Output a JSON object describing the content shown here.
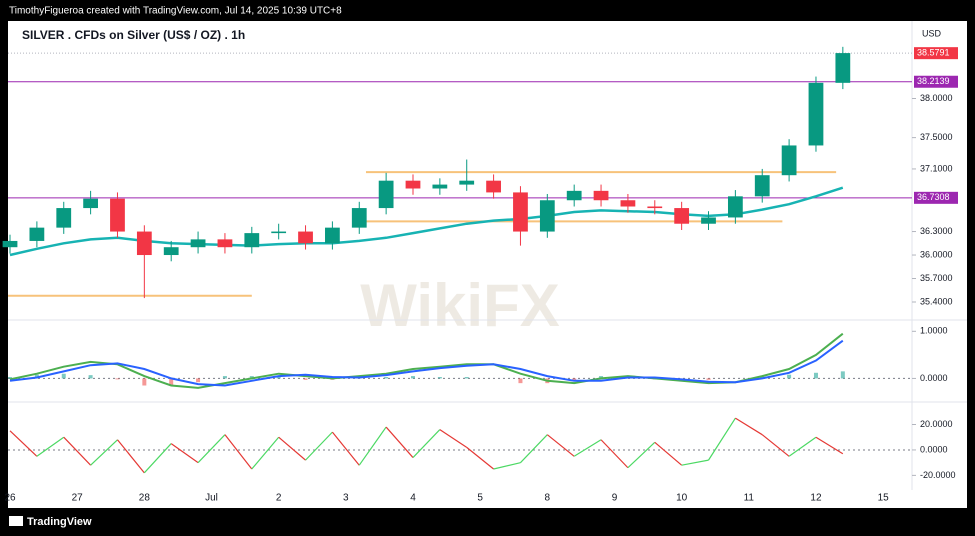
{
  "header": {
    "credit": "TimothyFigueroa created with TradingView.com, Jul 14, 2025 10:39 UTC+8"
  },
  "footer": {
    "brand": "TradingView"
  },
  "watermark": "WikiFX",
  "chart_data": {
    "type": "candlestick",
    "title": "SILVER . CFDs on Silver (US$ / OZ) . 1h",
    "currency": "USD",
    "up_color": "#089981",
    "down_color": "#f23645",
    "x": [
      0,
      0.4,
      0.8,
      1.2,
      1.6,
      2.0,
      2.4,
      2.8,
      3.2,
      3.6,
      4.0,
      4.4,
      4.8,
      5.2,
      5.6,
      6.0,
      6.4,
      6.8,
      7.2,
      7.6,
      8.0,
      8.4,
      8.8,
      9.2,
      9.6,
      10.0,
      10.4,
      10.8,
      11.2,
      11.6,
      12.0,
      12.4
    ],
    "open": [
      36.1,
      36.18,
      36.35,
      36.6,
      36.72,
      36.3,
      36.0,
      36.1,
      36.2,
      36.1,
      36.28,
      36.3,
      36.15,
      36.35,
      36.6,
      36.95,
      36.85,
      36.9,
      36.95,
      36.8,
      36.3,
      36.7,
      36.82,
      36.7,
      36.62,
      36.6,
      36.4,
      36.48,
      36.75,
      37.02,
      37.4,
      38.2
    ],
    "high": [
      36.26,
      36.43,
      36.68,
      36.82,
      36.8,
      36.38,
      36.18,
      36.3,
      36.28,
      36.36,
      36.4,
      36.38,
      36.43,
      36.68,
      37.05,
      37.03,
      36.98,
      37.22,
      37.03,
      36.88,
      36.78,
      36.9,
      36.9,
      36.78,
      36.7,
      36.68,
      36.56,
      36.83,
      37.1,
      37.48,
      38.28,
      38.66
    ],
    "low": [
      36.02,
      36.1,
      36.27,
      36.52,
      36.22,
      35.45,
      35.92,
      36.02,
      36.02,
      36.02,
      36.2,
      36.07,
      36.07,
      36.27,
      36.52,
      36.77,
      36.77,
      36.82,
      36.72,
      36.12,
      36.22,
      36.62,
      36.62,
      36.54,
      36.52,
      36.32,
      36.32,
      36.4,
      36.67,
      36.94,
      37.32,
      38.12
    ],
    "close": [
      36.18,
      36.35,
      36.6,
      36.72,
      36.3,
      36.0,
      36.1,
      36.2,
      36.1,
      36.28,
      36.3,
      36.15,
      36.35,
      36.6,
      36.95,
      36.85,
      36.9,
      36.95,
      36.8,
      36.3,
      36.7,
      36.82,
      36.7,
      36.62,
      36.6,
      36.4,
      36.48,
      36.75,
      37.02,
      37.4,
      38.2,
      38.58
    ],
    "moving_average": {
      "color": "#17b3b3",
      "values": [
        36.0,
        36.08,
        36.15,
        36.2,
        36.22,
        36.18,
        36.15,
        36.14,
        36.13,
        36.12,
        36.14,
        36.15,
        36.15,
        36.18,
        36.22,
        36.28,
        36.34,
        36.4,
        36.44,
        36.46,
        36.5,
        36.55,
        36.57,
        36.56,
        36.55,
        36.52,
        36.5,
        36.52,
        36.58,
        36.65,
        36.75,
        36.86
      ]
    },
    "xlim": [
      -0.03,
      13.4
    ],
    "xticks": [
      {
        "value": 0,
        "label": "26"
      },
      {
        "value": 1,
        "label": "27"
      },
      {
        "value": 2,
        "label": "28"
      },
      {
        "value": 3,
        "label": "Jul"
      },
      {
        "value": 4,
        "label": "2"
      },
      {
        "value": 5,
        "label": "3"
      },
      {
        "value": 6,
        "label": "4"
      },
      {
        "value": 7,
        "label": "5"
      },
      {
        "value": 8,
        "label": "8"
      },
      {
        "value": 9,
        "label": "9"
      },
      {
        "value": 10,
        "label": "10"
      },
      {
        "value": 11,
        "label": "11"
      },
      {
        "value": 12,
        "label": "12"
      },
      {
        "value": 13,
        "label": "15"
      }
    ],
    "ylim": [
      35.17,
      38.99
    ],
    "yticks": [
      {
        "value": 35.4,
        "label": "35.4000"
      },
      {
        "value": 35.7,
        "label": "35.7000"
      },
      {
        "value": 36.0,
        "label": "36.0000"
      },
      {
        "value": 36.3,
        "label": "36.3000"
      },
      {
        "value": 37.1,
        "label": "37.1000"
      },
      {
        "value": 37.5,
        "label": "37.5000"
      },
      {
        "value": 38.0,
        "label": "38.0000"
      }
    ],
    "last_price": {
      "value": 38.5791,
      "color": "#f23645"
    },
    "levels": [
      {
        "value": 38.2139,
        "color": "#9c27b0"
      },
      {
        "value": 36.7308,
        "color": "#9c27b0"
      }
    ],
    "zones": [
      {
        "value": 37.06,
        "x_start": 5.3,
        "x_end": 12.3,
        "color": "#f7c27a"
      },
      {
        "value": 36.43,
        "x_start": 5.3,
        "x_end": 11.5,
        "color": "#f7c27a"
      },
      {
        "value": 35.48,
        "x_start": -0.03,
        "x_end": 3.6,
        "color": "#f7c27a"
      }
    ],
    "macd": {
      "ylim": [
        -0.5,
        1.24
      ],
      "yticks": [
        {
          "value": 1,
          "label": "1.0000"
        },
        {
          "value": 0,
          "label": "0.0000"
        }
      ],
      "series": [
        {
          "color": "#4caf50",
          "values": [
            -0.02,
            0.1,
            0.25,
            0.35,
            0.3,
            0.05,
            -0.15,
            -0.2,
            -0.1,
            0,
            0.1,
            0.05,
            0,
            0.05,
            0.1,
            0.2,
            0.25,
            0.3,
            0.3,
            0.1,
            -0.05,
            -0.1,
            0,
            0.05,
            0,
            -0.05,
            -0.1,
            -0.08,
            0.05,
            0.2,
            0.5,
            0.95
          ]
        },
        {
          "color": "#2962ff",
          "values": [
            -0.05,
            0.02,
            0.15,
            0.28,
            0.32,
            0.2,
            0,
            -0.12,
            -0.15,
            -0.05,
            0.05,
            0.08,
            0.03,
            0.02,
            0.07,
            0.15,
            0.22,
            0.27,
            0.3,
            0.2,
            0.05,
            -0.05,
            -0.05,
            0.02,
            0.02,
            -0.02,
            -0.07,
            -0.08,
            0,
            0.12,
            0.38,
            0.8
          ]
        }
      ],
      "histogram": [
        0.03,
        0.08,
        0.1,
        0.07,
        -0.02,
        -0.15,
        -0.15,
        -0.08,
        0.05,
        0.05,
        0.05,
        -0.03,
        -0.03,
        0.03,
        0.03,
        0.05,
        0.03,
        0.03,
        0,
        -0.1,
        -0.1,
        -0.05,
        0.05,
        0.03,
        -0.02,
        -0.03,
        -0.03,
        0,
        0.05,
        0.08,
        0.12,
        0.15
      ]
    },
    "oscillator": {
      "ylim": [
        -31.5,
        37.7
      ],
      "yticks": [
        {
          "value": 20,
          "label": "20.0000"
        },
        {
          "value": 0,
          "label": "0.0000"
        },
        {
          "value": -20,
          "label": "-20.0000"
        }
      ],
      "up_color": "#4cd964",
      "down_color": "#e53935",
      "values": [
        15,
        -5,
        10,
        -12,
        8,
        -18,
        5,
        -10,
        12,
        -15,
        10,
        -8,
        14,
        -12,
        18,
        -6,
        16,
        2,
        -15,
        -10,
        12,
        -5,
        8,
        -14,
        6,
        -12,
        -8,
        25,
        12,
        -5,
        10,
        -3
      ]
    }
  }
}
